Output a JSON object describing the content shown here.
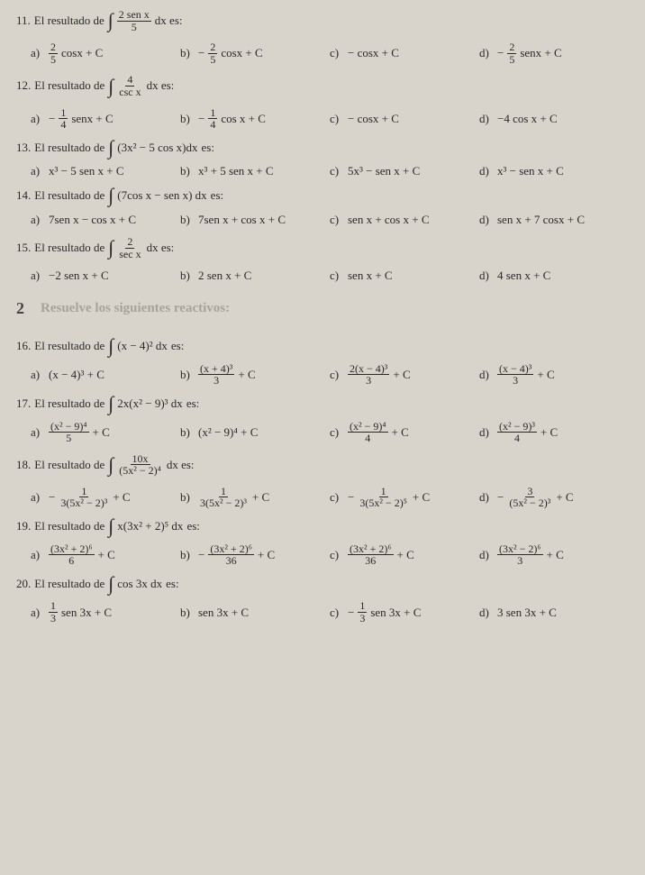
{
  "problems": [
    {
      "num": "11.",
      "stem_pre": "El resultado de",
      "integrand_num": "2 sen x",
      "integrand_den": "5",
      "stem_post": "dx es:",
      "opts": {
        "a": {
          "pre": "",
          "frac_num": "2",
          "frac_den": "5",
          "post": "cosx + C"
        },
        "b": {
          "pre": "−",
          "frac_num": "2",
          "frac_den": "5",
          "post": "cosx + C"
        },
        "c": {
          "plain": "− cosx + C"
        },
        "d": {
          "pre": "−",
          "frac_num": "2",
          "frac_den": "5",
          "post": "senx + C"
        }
      }
    },
    {
      "num": "12.",
      "stem_pre": "El resultado de",
      "integrand_num": "4",
      "integrand_den": "csc x",
      "stem_post": "dx es:",
      "opts": {
        "a": {
          "pre": "−",
          "frac_num": "1",
          "frac_den": "4",
          "post": "senx + C"
        },
        "b": {
          "pre": "−",
          "frac_num": "1",
          "frac_den": "4",
          "post": "cos x + C"
        },
        "c": {
          "plain": "− cosx + C"
        },
        "d": {
          "plain": "−4 cos x + C"
        }
      }
    },
    {
      "num": "13.",
      "stem_pre": "El resultado de",
      "integrand_plain": "(3x² − 5 cos x)dx",
      "stem_post": "es:",
      "opts": {
        "a": {
          "plain": "x³ − 5 sen x + C"
        },
        "b": {
          "plain": "x³ + 5 sen x + C"
        },
        "c": {
          "plain": "5x³ − sen x + C"
        },
        "d": {
          "plain": "x³ − sen x + C"
        }
      }
    },
    {
      "num": "14.",
      "stem_pre": "El resultado de",
      "integrand_plain": "(7cos x − sen x) dx",
      "stem_post": "es:",
      "opts": {
        "a": {
          "plain": "7sen x − cos x + C"
        },
        "b": {
          "plain": "7sen x + cos x + C"
        },
        "c": {
          "plain": "sen x + cos x + C"
        },
        "d": {
          "plain": "sen x + 7 cosx + C"
        }
      }
    },
    {
      "num": "15.",
      "stem_pre": "El resultado de",
      "integrand_num": "2",
      "integrand_den": "sec x",
      "stem_post": "dx es:",
      "opts": {
        "a": {
          "plain": "−2 sen x + C"
        },
        "b": {
          "plain": "2 sen x + C"
        },
        "c": {
          "plain": "sen x + C"
        },
        "d": {
          "plain": "4 sen x + C"
        }
      }
    }
  ],
  "section": {
    "num": "2",
    "title": "Resuelve los siguientes reactivos:"
  },
  "problems2": [
    {
      "num": "16.",
      "stem_pre": "El resultado de",
      "integrand_plain": "(x − 4)² dx",
      "stem_post": "es:",
      "opts": {
        "a": {
          "plain": "(x − 4)³ + C"
        },
        "b": {
          "frac_num": "(x + 4)³",
          "frac_den": "3",
          "post": " + C"
        },
        "c": {
          "frac_num": "2(x − 4)³",
          "frac_den": "3",
          "post": " + C"
        },
        "d": {
          "frac_num": "(x − 4)³",
          "frac_den": "3",
          "post": " + C"
        }
      }
    },
    {
      "num": "17.",
      "stem_pre": "El resultado de",
      "integrand_plain": "2x(x² − 9)³ dx",
      "stem_post": "es:",
      "opts": {
        "a": {
          "frac_num": "(x² − 9)⁴",
          "frac_den": "5",
          "post": " + C"
        },
        "b": {
          "plain": "(x² − 9)⁴ + C"
        },
        "c": {
          "frac_num": "(x² − 9)⁴",
          "frac_den": "4",
          "post": " + C"
        },
        "d": {
          "frac_num": "(x² − 9)³",
          "frac_den": "4",
          "post": " + C"
        }
      }
    },
    {
      "num": "18.",
      "stem_pre": "El resultado de",
      "integrand_num": "10x",
      "integrand_den": "(5x² − 2)⁴",
      "stem_post": "dx es:",
      "opts": {
        "a": {
          "pre": "−",
          "frac_num": "1",
          "frac_den": "3(5x² − 2)³",
          "post": " + C"
        },
        "b": {
          "frac_num": "1",
          "frac_den": "3(5x² − 2)³",
          "post": " + C"
        },
        "c": {
          "pre": "−",
          "frac_num": "1",
          "frac_den": "3(5x² − 2)⁵",
          "post": " + C"
        },
        "d": {
          "pre": "−",
          "frac_num": "3",
          "frac_den": "(5x² − 2)³",
          "post": " + C"
        }
      }
    },
    {
      "num": "19.",
      "stem_pre": "El resultado de",
      "integrand_plain": "x(3x² + 2)⁵ dx",
      "stem_post": "es:",
      "opts": {
        "a": {
          "frac_num": "(3x² + 2)⁶",
          "frac_den": "6",
          "post": " + C"
        },
        "b": {
          "pre": "−",
          "frac_num": "(3x² + 2)⁶",
          "frac_den": "36",
          "post": " + C"
        },
        "c": {
          "frac_num": "(3x² + 2)⁶",
          "frac_den": "36",
          "post": " + C"
        },
        "d": {
          "frac_num": "(3x² − 2)⁶",
          "frac_den": "3",
          "post": " + C"
        }
      }
    },
    {
      "num": "20.",
      "stem_pre": "El resultado de",
      "integrand_plain": "cos 3x dx",
      "stem_post": "es:",
      "opts": {
        "a": {
          "frac_num": "1",
          "frac_den": "3",
          "post": " sen 3x + C"
        },
        "b": {
          "plain": "sen 3x + C"
        },
        "c": {
          "pre": "−",
          "frac_num": "1",
          "frac_den": "3",
          "post": " sen 3x + C"
        },
        "d": {
          "plain": "3 sen 3x + C"
        }
      }
    }
  ],
  "labels": {
    "a": "a)",
    "b": "b)",
    "c": "c)",
    "d": "d)"
  }
}
